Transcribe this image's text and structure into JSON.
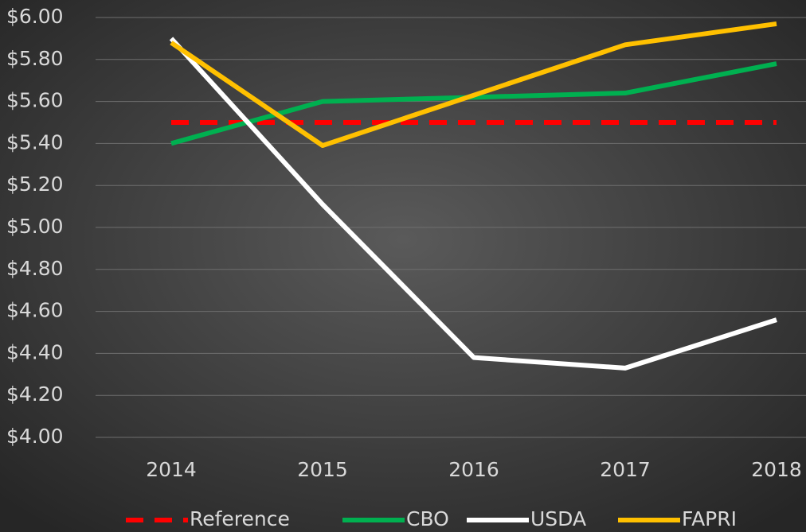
{
  "chart_data": {
    "type": "line",
    "categories": [
      "2014",
      "2015",
      "2016",
      "2017",
      "2018"
    ],
    "series": [
      {
        "name": "Reference",
        "color": "#ff0000",
        "line_style": "dashed",
        "values": [
          5.5,
          5.5,
          5.5,
          5.5,
          5.5
        ]
      },
      {
        "name": "CBO",
        "color": "#00b050",
        "line_style": "solid",
        "values": [
          5.4,
          5.6,
          5.62,
          5.64,
          5.78
        ]
      },
      {
        "name": "USDA",
        "color": "#ffffff",
        "line_style": "solid",
        "values": [
          5.9,
          5.11,
          4.38,
          4.33,
          4.56
        ]
      },
      {
        "name": "FAPRI",
        "color": "#ffc000",
        "line_style": "solid",
        "values": [
          5.88,
          5.39,
          5.63,
          5.87,
          5.97
        ]
      }
    ],
    "ylim": [
      4,
      6
    ],
    "yticks": [
      {
        "value": 4,
        "label": "$4.00"
      },
      {
        "value": 4.2,
        "label": "$4.20"
      },
      {
        "value": 4.4,
        "label": "$4.40"
      },
      {
        "value": 4.6,
        "label": "$4.60"
      },
      {
        "value": 4.8,
        "label": "$4.80"
      },
      {
        "value": 5,
        "label": "$5.00"
      },
      {
        "value": 5.2,
        "label": "$5.20"
      },
      {
        "value": 5.4,
        "label": "$5.40"
      },
      {
        "value": 5.6,
        "label": "$5.60"
      },
      {
        "value": 5.8,
        "label": "$5.80"
      },
      {
        "value": 6,
        "label": "$6.00"
      }
    ],
    "grid": true,
    "legend": "bottom"
  }
}
